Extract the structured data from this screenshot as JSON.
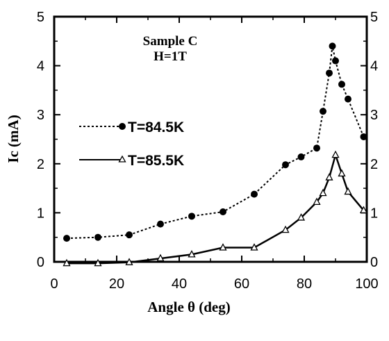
{
  "chart_data": {
    "type": "line",
    "title": "",
    "annotations": [
      "Sample C",
      "H=1T"
    ],
    "xlabel": "Angle θ (deg)",
    "ylabel": "Ic (mA)",
    "xlim": [
      0,
      100
    ],
    "ylim": [
      0,
      5
    ],
    "x_ticks": [
      0,
      20,
      40,
      60,
      80,
      100
    ],
    "x_tick_labels": [
      "0",
      "20",
      "40",
      "60",
      "80",
      "100"
    ],
    "y_ticks": [
      0,
      1,
      2,
      3,
      4,
      5
    ],
    "y_tick_labels": [
      "0",
      "1",
      "2",
      "3",
      "4",
      "5"
    ],
    "right_y_tick_labels": [
      "0",
      "1",
      "2",
      "3",
      "4",
      "5"
    ],
    "grid": false,
    "legend_position": "left-middle",
    "series": [
      {
        "name": "T=84.5K",
        "line_style": "dotted",
        "marker": "filled-circle",
        "color": "#000000",
        "x": [
          4,
          14,
          24,
          34,
          44,
          54,
          64,
          74,
          79,
          84,
          86,
          88,
          89,
          90,
          92,
          94,
          99
        ],
        "y": [
          0.48,
          0.5,
          0.55,
          0.77,
          0.93,
          1.02,
          1.38,
          1.98,
          2.14,
          2.32,
          3.07,
          3.85,
          4.4,
          4.1,
          3.62,
          3.32,
          2.55
        ]
      },
      {
        "name": "T=85.5K",
        "line_style": "solid",
        "marker": "open-triangle",
        "color": "#000000",
        "x": [
          4,
          14,
          24,
          34,
          44,
          54,
          64,
          74,
          79,
          84,
          86,
          88,
          90,
          92,
          94,
          99
        ],
        "y": [
          -0.03,
          -0.03,
          -0.01,
          0.07,
          0.15,
          0.29,
          0.29,
          0.65,
          0.9,
          1.22,
          1.4,
          1.72,
          2.18,
          1.8,
          1.43,
          1.05
        ]
      }
    ]
  }
}
